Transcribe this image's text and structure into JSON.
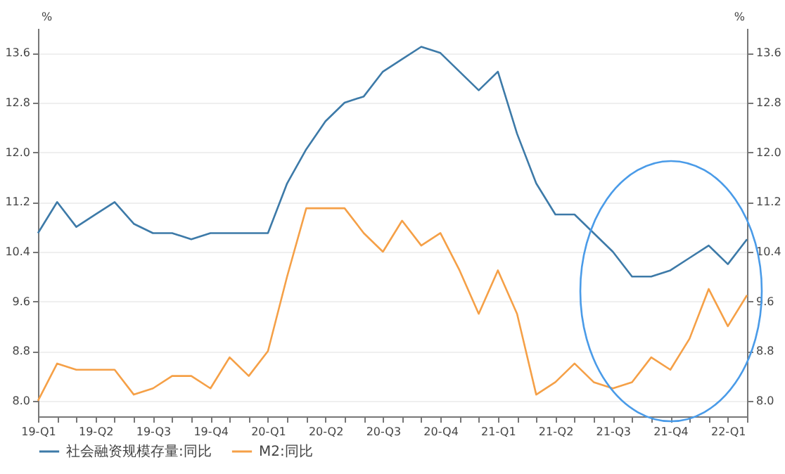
{
  "chart_data": {
    "type": "line",
    "categories": [
      "19-Q1",
      null,
      null,
      "19-Q2",
      null,
      null,
      "19-Q3",
      null,
      null,
      "19-Q4",
      null,
      null,
      "20-Q1",
      null,
      null,
      "20-Q2",
      null,
      null,
      "20-Q3",
      null,
      null,
      "20-Q4",
      null,
      null,
      "21-Q1",
      null,
      null,
      "21-Q2",
      null,
      null,
      "21-Q3",
      null,
      null,
      "21-Q4",
      null,
      null,
      "22-Q1",
      null
    ],
    "series": [
      {
        "name": "社会融资规模存量:同比",
        "color": "#3d7aa8",
        "values": [
          10.7,
          11.2,
          10.8,
          11.0,
          11.2,
          10.85,
          10.7,
          10.7,
          10.6,
          10.7,
          10.7,
          10.7,
          10.7,
          11.5,
          12.05,
          12.5,
          12.8,
          12.9,
          13.3,
          13.5,
          13.7,
          13.6,
          13.3,
          13.0,
          13.3,
          12.3,
          11.5,
          11.0,
          11.0,
          10.7,
          10.4,
          10.0,
          10.0,
          10.1,
          10.3,
          10.5,
          10.2,
          10.6
        ]
      },
      {
        "name": "M2:同比",
        "color": "#f5a047",
        "values": [
          8.0,
          8.6,
          8.5,
          8.5,
          8.5,
          8.1,
          8.2,
          8.4,
          8.4,
          8.2,
          8.7,
          8.4,
          8.8,
          10.0,
          11.1,
          11.1,
          11.1,
          10.7,
          10.4,
          10.9,
          10.5,
          10.7,
          10.1,
          9.4,
          10.1,
          9.4,
          8.1,
          8.3,
          8.6,
          8.3,
          8.2,
          8.3,
          8.7,
          8.5,
          9.0,
          9.8,
          9.2,
          9.7
        ]
      }
    ],
    "ylabel": "%",
    "y2label": "%",
    "ylim": [
      7.75,
      14.0
    ],
    "yticks": [
      {
        "value": 8,
        "label": "8.0"
      },
      {
        "value": 8.8,
        "label": "8.8"
      },
      {
        "value": 9.6,
        "label": "9.6"
      },
      {
        "value": 10.4,
        "label": "10.4"
      },
      {
        "value": 11.2,
        "label": "11.2"
      },
      {
        "value": 12,
        "label": "12.0"
      },
      {
        "value": 12.8,
        "label": "12.8"
      },
      {
        "value": 13.6,
        "label": "13.6"
      }
    ],
    "y2lim": [
      7.75,
      14.0
    ],
    "y2ticks": [
      {
        "value": 8,
        "label": "8.0"
      },
      {
        "value": 8.8,
        "label": "8.8"
      },
      {
        "value": 9.6,
        "label": "9.6"
      },
      {
        "value": 10.4,
        "label": "10.4"
      },
      {
        "value": 11.2,
        "label": "11.2"
      },
      {
        "value": 12,
        "label": "12.0"
      },
      {
        "value": 12.8,
        "label": "12.8"
      },
      {
        "value": 13.6,
        "label": "13.6"
      }
    ],
    "grid": "y",
    "legend": "bottom"
  }
}
